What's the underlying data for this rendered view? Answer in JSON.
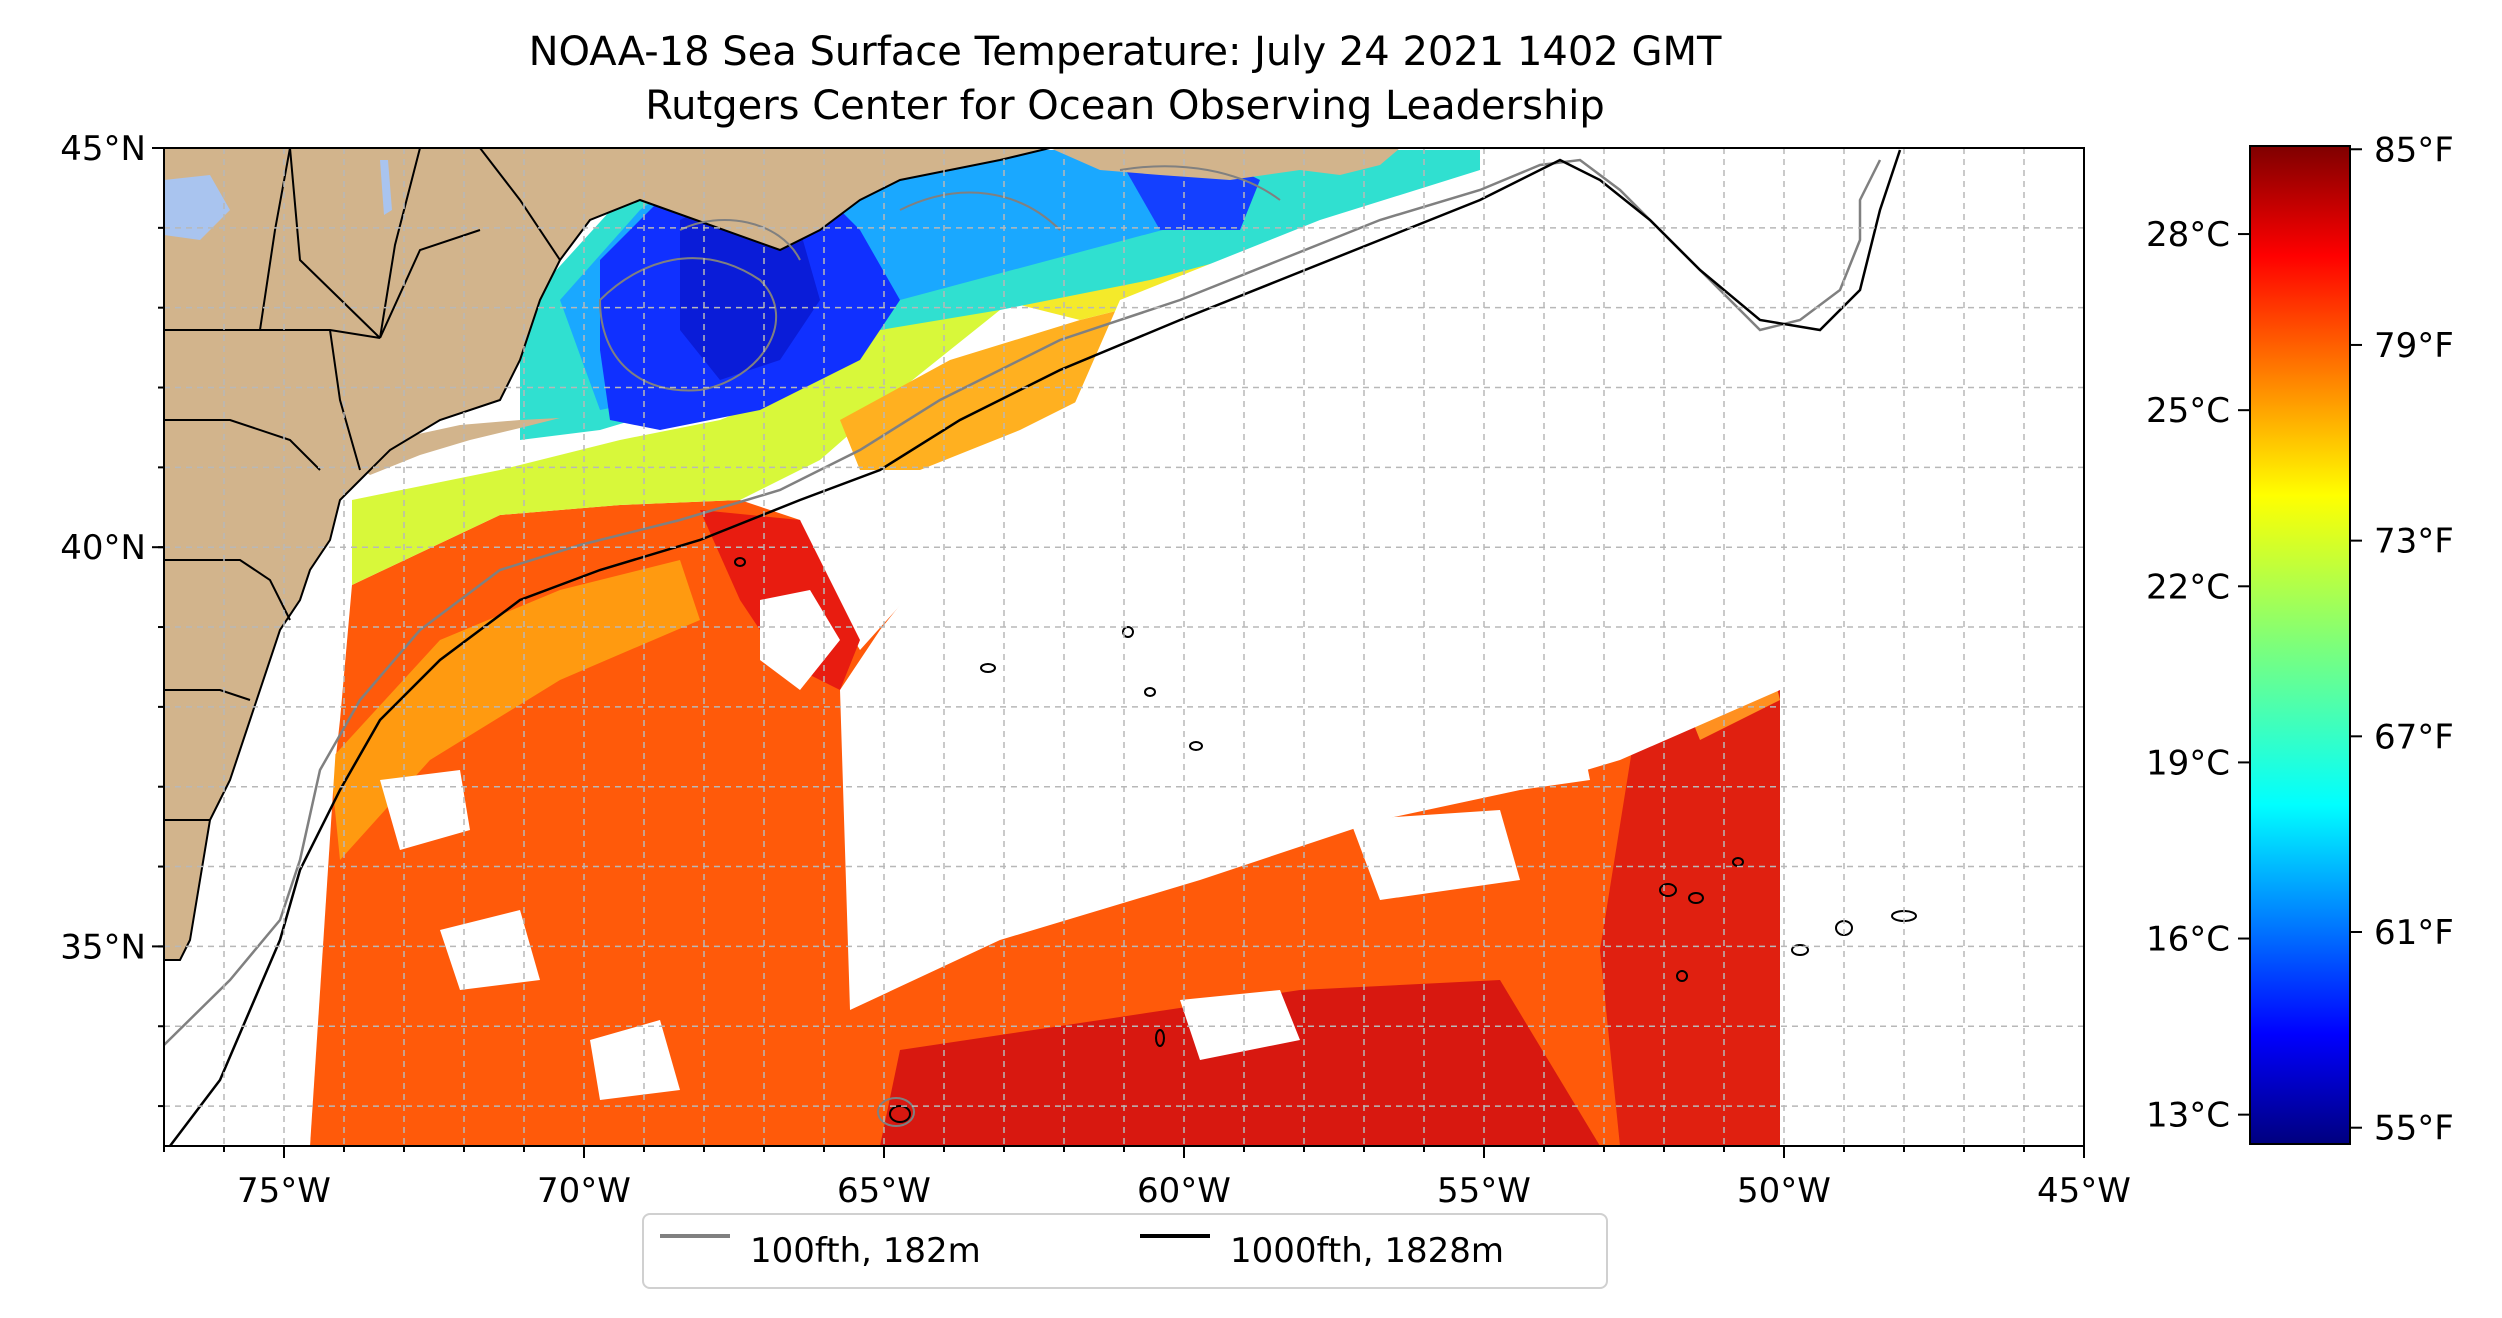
{
  "title": "NOAA-18 Sea Surface Temperature: July 24 2021 1402 GMT",
  "subtitle": "Rutgers Center for Ocean Observing Leadership",
  "map": {
    "lon_range": [
      -77,
      -45
    ],
    "lat_range": [
      32.5,
      45
    ],
    "lon_ticks": [
      {
        "value": -75,
        "label": "75°W"
      },
      {
        "value": -70,
        "label": "70°W"
      },
      {
        "value": -65,
        "label": "65°W"
      },
      {
        "value": -60,
        "label": "60°W"
      },
      {
        "value": -55,
        "label": "55°W"
      },
      {
        "value": -50,
        "label": "50°W"
      },
      {
        "value": -45,
        "label": "45°W"
      }
    ],
    "lat_ticks": [
      {
        "value": 35,
        "label": "35°N"
      },
      {
        "value": 40,
        "label": "40°N"
      },
      {
        "value": 45,
        "label": "45°N"
      }
    ],
    "grid": true,
    "land_color": "#d2b48c",
    "ocean_nodata_color": "#ffffff"
  },
  "legend": {
    "placement": "bottom-center",
    "items": [
      {
        "label": "100fth, 182m",
        "color": "#808080"
      },
      {
        "label": "1000fth, 1828m",
        "color": "#000000"
      }
    ]
  },
  "colorbar": {
    "colormap": "jet",
    "celsius_range": [
      12.5,
      29.5
    ],
    "celsius_ticks": [
      {
        "value": 13,
        "label": "13°C"
      },
      {
        "value": 16,
        "label": "16°C"
      },
      {
        "value": 19,
        "label": "19°C"
      },
      {
        "value": 22,
        "label": "22°C"
      },
      {
        "value": 25,
        "label": "25°C"
      },
      {
        "value": 28,
        "label": "28°C"
      }
    ],
    "fahrenheit_ticks": [
      {
        "value": 55,
        "label": "55°F"
      },
      {
        "value": 61,
        "label": "61°F"
      },
      {
        "value": 67,
        "label": "67°F"
      },
      {
        "value": 73,
        "label": "73°F"
      },
      {
        "value": 79,
        "label": "79°F"
      },
      {
        "value": 85,
        "label": "85°F"
      }
    ],
    "fahrenheit_range": [
      54.5,
      85.1
    ]
  }
}
